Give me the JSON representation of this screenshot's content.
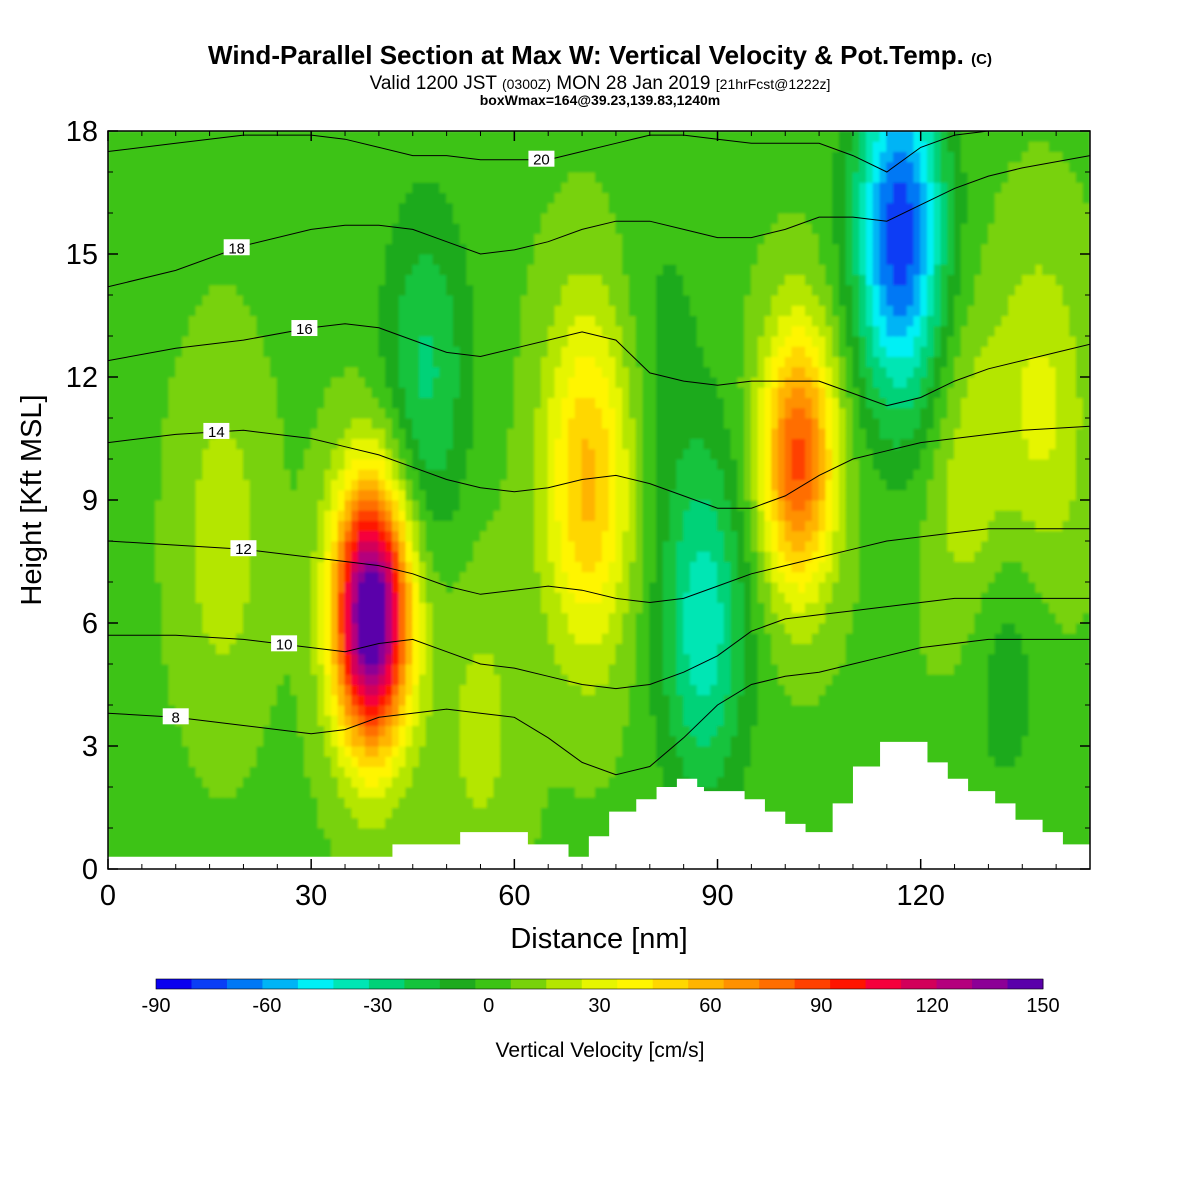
{
  "title": {
    "main": "Wind-Parallel Section at Max W: Vertical Velocity & Pot.Temp.",
    "copyright": "(C)",
    "valid_prefix": "Valid 1200 JST",
    "valid_utc": "(0300Z)",
    "valid_date": "MON 28 Jan 2019",
    "forecast": "[21hrFcst@1222z]",
    "box": "boxWmax=164@39.23,139.83,1240m"
  },
  "chart_data": {
    "type": "heatmap",
    "xlabel": "Distance [nm]",
    "ylabel": "Height [Kft MSL]",
    "xlim": [
      0,
      145
    ],
    "ylim": [
      0,
      18
    ],
    "x_ticks": [
      0,
      30,
      60,
      90,
      120
    ],
    "y_ticks": [
      0,
      3,
      6,
      9,
      12,
      15,
      18
    ],
    "colorbar": {
      "label": "Vertical Velocity [cm/s]",
      "ticks": [
        -90,
        -60,
        -30,
        0,
        30,
        60,
        90,
        120,
        150
      ],
      "levels": [
        -90,
        -80,
        -70,
        -60,
        -50,
        -40,
        -30,
        -20,
        -10,
        0,
        10,
        20,
        30,
        40,
        50,
        60,
        70,
        80,
        90,
        100,
        110,
        120,
        130,
        140,
        150
      ],
      "colors": [
        "#0a00f0",
        "#0a3ef5",
        "#0078f5",
        "#00b4f5",
        "#00f0f5",
        "#00e6b4",
        "#00d278",
        "#14c33c",
        "#1eaa1e",
        "#3cc314",
        "#78d20a",
        "#b4e600",
        "#e6f500",
        "#fff500",
        "#ffd700",
        "#ffb400",
        "#ff9100",
        "#ff6e00",
        "#ff4100",
        "#ff1400",
        "#f5003c",
        "#d2005a",
        "#b4007d",
        "#8c0096",
        "#5a00aa"
      ]
    },
    "vertical_velocity_cells": {
      "background": 8,
      "updrafts": [
        {
          "x": 39,
          "z": 6.2,
          "peak": 164
        },
        {
          "x": 71,
          "z": 9.5,
          "peak": 55
        },
        {
          "x": 102,
          "z": 10.0,
          "peak": 85
        },
        {
          "x": 55,
          "z": 3.5,
          "peak": 15
        },
        {
          "x": 128,
          "z": 9.0,
          "peak": 25
        },
        {
          "x": 138,
          "z": 11.0,
          "peak": 25
        },
        {
          "x": 17,
          "z": 8.0,
          "peak": 18
        }
      ],
      "downdrafts": [
        {
          "x": 47,
          "z": 12.0,
          "peak": -30
        },
        {
          "x": 88,
          "z": 6.0,
          "peak": -45
        },
        {
          "x": 117,
          "z": 15.5,
          "peak": -85
        },
        {
          "x": 82,
          "z": 13.0,
          "peak": -10
        },
        {
          "x": 132,
          "z": 6.0,
          "peak": -20
        }
      ]
    },
    "potential_temperature_contours": [
      {
        "label": "8",
        "x": [
          0,
          10,
          20,
          30,
          35,
          40,
          45,
          50,
          55,
          60,
          65,
          70,
          75,
          80,
          85,
          90,
          95,
          100,
          105,
          110,
          115,
          120,
          125,
          130,
          135,
          145
        ],
        "z": [
          3.8,
          3.7,
          3.5,
          3.3,
          3.4,
          3.7,
          3.8,
          3.9,
          3.8,
          3.7,
          3.2,
          2.6,
          2.3,
          2.5,
          3.2,
          4.0,
          4.5,
          4.7,
          4.8,
          5.0,
          5.2,
          5.4,
          5.5,
          5.6,
          5.6,
          5.6
        ],
        "label_x": 10
      },
      {
        "label": "10",
        "x": [
          0,
          10,
          20,
          30,
          35,
          40,
          45,
          50,
          55,
          60,
          65,
          70,
          75,
          80,
          85,
          90,
          95,
          100,
          105,
          110,
          115,
          120,
          125,
          130,
          135,
          145
        ],
        "z": [
          5.7,
          5.7,
          5.6,
          5.4,
          5.3,
          5.5,
          5.6,
          5.3,
          5.0,
          4.9,
          4.7,
          4.5,
          4.4,
          4.5,
          4.8,
          5.2,
          5.8,
          6.1,
          6.2,
          6.3,
          6.4,
          6.5,
          6.6,
          6.6,
          6.6,
          6.6
        ],
        "label_x": 26
      },
      {
        "label": "12",
        "x": [
          0,
          10,
          20,
          30,
          35,
          40,
          45,
          50,
          55,
          60,
          65,
          70,
          75,
          80,
          85,
          90,
          95,
          100,
          105,
          110,
          115,
          120,
          125,
          130,
          135,
          145
        ],
        "z": [
          8.0,
          7.9,
          7.8,
          7.6,
          7.5,
          7.4,
          7.2,
          6.9,
          6.7,
          6.8,
          6.9,
          6.8,
          6.6,
          6.5,
          6.6,
          6.9,
          7.2,
          7.4,
          7.6,
          7.8,
          8.0,
          8.1,
          8.2,
          8.3,
          8.3,
          8.3
        ],
        "label_x": 20
      },
      {
        "label": "14",
        "x": [
          0,
          10,
          20,
          30,
          35,
          40,
          45,
          50,
          55,
          60,
          65,
          70,
          75,
          80,
          85,
          90,
          95,
          100,
          105,
          110,
          115,
          120,
          125,
          130,
          135,
          145
        ],
        "z": [
          10.4,
          10.6,
          10.7,
          10.5,
          10.3,
          10.1,
          9.8,
          9.5,
          9.3,
          9.2,
          9.3,
          9.5,
          9.6,
          9.4,
          9.1,
          8.8,
          8.8,
          9.1,
          9.6,
          10.0,
          10.2,
          10.4,
          10.5,
          10.6,
          10.7,
          10.8
        ],
        "label_x": 16
      },
      {
        "label": "16",
        "x": [
          0,
          10,
          20,
          30,
          35,
          40,
          45,
          50,
          55,
          60,
          65,
          70,
          75,
          80,
          85,
          90,
          95,
          100,
          105,
          110,
          115,
          120,
          125,
          130,
          135,
          145
        ],
        "z": [
          12.4,
          12.7,
          12.9,
          13.2,
          13.3,
          13.2,
          12.9,
          12.6,
          12.5,
          12.7,
          12.9,
          13.1,
          12.9,
          12.1,
          11.9,
          11.8,
          11.9,
          11.9,
          11.9,
          11.6,
          11.3,
          11.5,
          11.9,
          12.2,
          12.4,
          12.8
        ],
        "label_x": 29
      },
      {
        "label": "18",
        "x": [
          0,
          10,
          20,
          30,
          35,
          40,
          45,
          50,
          55,
          60,
          65,
          70,
          75,
          80,
          85,
          90,
          95,
          100,
          105,
          110,
          115,
          120,
          125,
          130,
          135,
          145
        ],
        "z": [
          14.2,
          14.6,
          15.2,
          15.6,
          15.7,
          15.7,
          15.6,
          15.3,
          15.0,
          15.1,
          15.3,
          15.6,
          15.8,
          15.8,
          15.6,
          15.4,
          15.4,
          15.6,
          15.9,
          15.9,
          15.8,
          16.2,
          16.6,
          16.9,
          17.1,
          17.4
        ],
        "label_x": 19
      },
      {
        "label": "20",
        "x": [
          0,
          10,
          20,
          30,
          35,
          40,
          45,
          50,
          55,
          60,
          65,
          70,
          75,
          80,
          85,
          90,
          95,
          100,
          105,
          110,
          115,
          120,
          125,
          130,
          135,
          145
        ],
        "z": [
          17.5,
          17.7,
          17.9,
          17.9,
          17.8,
          17.6,
          17.4,
          17.4,
          17.3,
          17.3,
          17.3,
          17.5,
          17.7,
          17.9,
          17.9,
          17.8,
          17.7,
          17.7,
          17.7,
          17.4,
          17.0,
          17.6,
          17.9,
          18.0,
          18.0,
          18.0
        ],
        "label_x": 64
      }
    ],
    "terrain": {
      "x": [
        0,
        42,
        42,
        52,
        52,
        62,
        62,
        68,
        68,
        71,
        71,
        74,
        74,
        78,
        78,
        81,
        81,
        84,
        84,
        87,
        87,
        88,
        88,
        94,
        94,
        97,
        97,
        100,
        100,
        103,
        103,
        107,
        107,
        110,
        110,
        114,
        114,
        121,
        121,
        124,
        124,
        127,
        127,
        131,
        131,
        134,
        134,
        138,
        138,
        141,
        141,
        145
      ],
      "z": [
        0.3,
        0.3,
        0.6,
        0.6,
        0.9,
        0.9,
        0.6,
        0.6,
        0.3,
        0.3,
        0.8,
        0.8,
        1.4,
        1.4,
        1.7,
        1.7,
        2.0,
        2.0,
        2.2,
        2.2,
        2.0,
        2.0,
        1.9,
        1.9,
        1.7,
        1.7,
        1.4,
        1.4,
        1.1,
        1.1,
        0.9,
        0.9,
        1.6,
        1.6,
        2.5,
        2.5,
        3.1,
        3.1,
        2.6,
        2.6,
        2.2,
        2.2,
        1.9,
        1.9,
        1.6,
        1.6,
        1.2,
        1.2,
        0.9,
        0.9,
        0.6,
        0.6
      ]
    }
  }
}
